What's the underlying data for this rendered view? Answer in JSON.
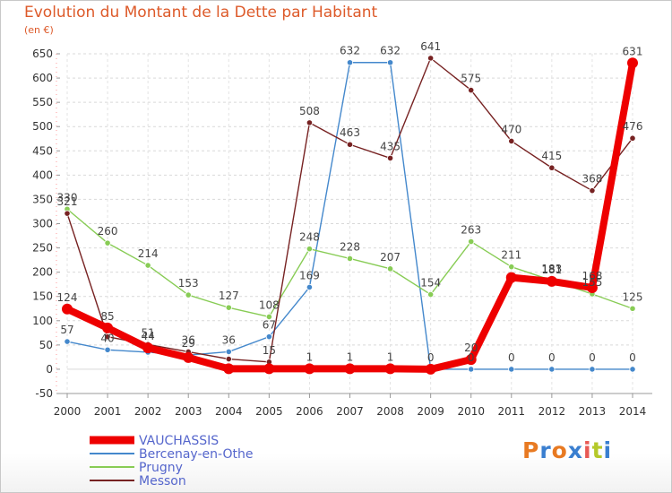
{
  "title": "Evolution du Montant de la Dette par Habitant",
  "unit": "(en €)",
  "logo": [
    "P",
    "r",
    "o",
    "x",
    "i",
    "t",
    "i"
  ],
  "chart_data": {
    "type": "line",
    "x": [
      "2000",
      "2001",
      "2002",
      "2003",
      "2004",
      "2005",
      "2006",
      "2007",
      "2008",
      "2009",
      "2010",
      "2011",
      "2012",
      "2013",
      "2014"
    ],
    "ylim": [
      -50,
      650
    ],
    "yticks": [
      -50,
      0,
      50,
      100,
      150,
      200,
      250,
      300,
      350,
      400,
      450,
      500,
      550,
      600,
      650
    ],
    "grid": true,
    "legend_position": "bottom-left",
    "series": [
      {
        "name": "VAUCHASSIS",
        "color": "#ee0000",
        "values": [
          124,
          85,
          44,
          24,
          1,
          1,
          1,
          1,
          1,
          0,
          20,
          189,
          181,
          168,
          631
        ],
        "labels": [
          "124",
          "85",
          "44",
          "",
          "",
          "",
          "1",
          "1",
          "1",
          "0",
          "20",
          "",
          "181",
          "168",
          "631"
        ]
      },
      {
        "name": "Bercenay-en-Othe",
        "color": "#4488cc",
        "values": [
          57,
          40,
          35,
          29,
          36,
          67,
          169,
          632,
          632,
          0,
          0,
          0,
          0,
          0,
          0
        ],
        "labels": [
          "57",
          "40",
          "",
          "29",
          "36",
          "67",
          "169",
          "632",
          "632",
          "",
          "0",
          "0",
          "0",
          "0",
          "0"
        ]
      },
      {
        "name": "Prugny",
        "color": "#88cc55",
        "values": [
          330,
          260,
          214,
          153,
          127,
          108,
          248,
          228,
          207,
          154,
          263,
          211,
          183,
          155,
          125
        ],
        "labels": [
          "330",
          "260",
          "214",
          "153",
          "127",
          "108",
          "248",
          "228",
          "207",
          "154",
          "263",
          "211",
          "183",
          "155",
          "125"
        ]
      },
      {
        "name": "Messon",
        "color": "#772222",
        "values": [
          321,
          67,
          51,
          36,
          21,
          15,
          508,
          463,
          435,
          641,
          575,
          470,
          415,
          368,
          476
        ],
        "labels": [
          "321",
          "",
          "51",
          "36",
          "",
          "15",
          "508",
          "463",
          "435",
          "641",
          "575",
          "470",
          "415",
          "368",
          "476"
        ]
      }
    ]
  }
}
